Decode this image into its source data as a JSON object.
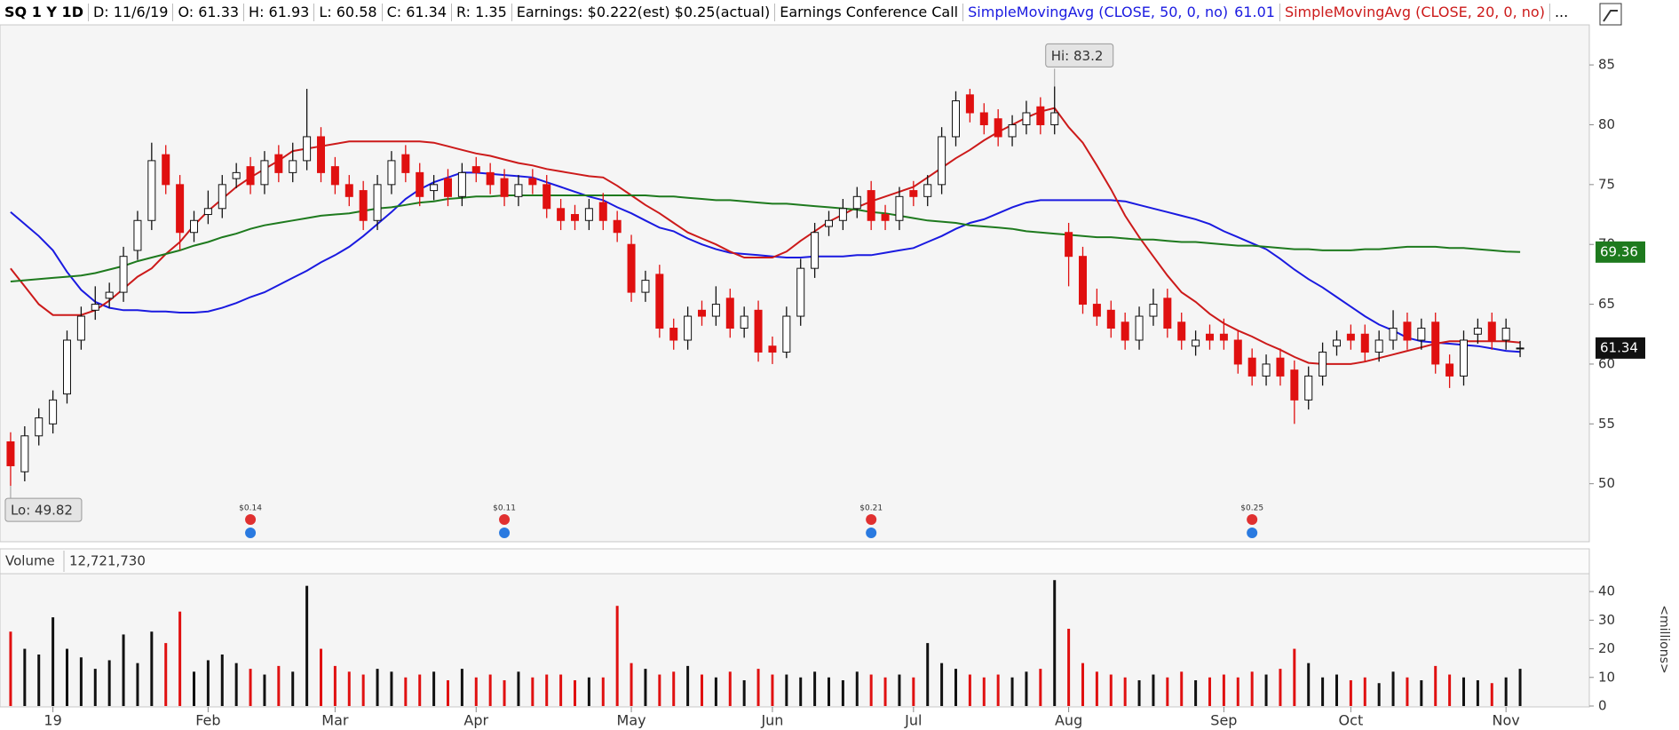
{
  "header": {
    "symbol": "SQ 1 Y 1D",
    "date": "D: 11/6/19",
    "open": "O: 61.33",
    "high": "H: 61.93",
    "low": "L: 60.58",
    "close": "C: 61.34",
    "range": "R: 1.35",
    "earnings": "Earnings: $0.222(est) $0.25(actual)",
    "call": "Earnings Conference Call",
    "more": "..."
  },
  "chart_data": [
    {
      "type": "candlestick",
      "categories": [
        null,
        null,
        null,
        "19",
        null,
        null,
        null,
        null,
        null,
        null,
        null,
        null,
        null,
        null,
        "Feb",
        null,
        null,
        null,
        null,
        null,
        null,
        null,
        null,
        "Mar",
        null,
        null,
        null,
        null,
        null,
        null,
        null,
        null,
        null,
        "Apr",
        null,
        null,
        null,
        null,
        null,
        null,
        null,
        null,
        null,
        null,
        "May",
        null,
        null,
        null,
        null,
        null,
        null,
        null,
        null,
        null,
        "Jun",
        null,
        null,
        null,
        null,
        null,
        null,
        null,
        null,
        null,
        "Jul",
        null,
        null,
        null,
        null,
        null,
        null,
        null,
        null,
        null,
        null,
        "Aug",
        null,
        null,
        null,
        null,
        null,
        null,
        null,
        null,
        null,
        null,
        "Sep",
        null,
        null,
        null,
        null,
        null,
        null,
        null,
        null,
        "Oct",
        null,
        null,
        null,
        null,
        null,
        null,
        null,
        null,
        null,
        null,
        "Nov",
        null
      ],
      "open": [
        53.5,
        51,
        54,
        55,
        57.5,
        62,
        64.5,
        65.5,
        66,
        69.5,
        72,
        77.5,
        75,
        71,
        72.5,
        73,
        75.5,
        76.5,
        75,
        77.5,
        76,
        77,
        79,
        76.5,
        75,
        74.5,
        72,
        75,
        77.5,
        76,
        74.5,
        75.5,
        74,
        76.5,
        76,
        75.5,
        74,
        75.5,
        75,
        73,
        72.5,
        72,
        73.5,
        72,
        70,
        66,
        67.5,
        63,
        62,
        64.5,
        64,
        65.5,
        63,
        64.5,
        61.5,
        61,
        64,
        68,
        71.5,
        72,
        73,
        74.5,
        72.5,
        72,
        74.5,
        74,
        75,
        79,
        82.5,
        81,
        80.5,
        79,
        80,
        81.5,
        80,
        71,
        69,
        65,
        64.5,
        63.5,
        62,
        64,
        65.5,
        63.5,
        61.5,
        62.5,
        62.5,
        62,
        60.5,
        59,
        60.5,
        59.5,
        57,
        59,
        61.5,
        62.5,
        62.5,
        61,
        62,
        63.5,
        62,
        63.5,
        60,
        59,
        62.5,
        63.5,
        62,
        61.33
      ],
      "high": [
        54.3,
        54.8,
        56.3,
        57.8,
        62.8,
        64.8,
        66.5,
        66.8,
        69.8,
        72.8,
        78.5,
        78.3,
        75.8,
        72.8,
        74.5,
        75.8,
        76.8,
        77.3,
        77.8,
        78.3,
        78.5,
        83,
        79.8,
        77.3,
        75.8,
        75.3,
        75.8,
        77.8,
        78.3,
        76.8,
        75.8,
        76.3,
        76.8,
        77.3,
        76.8,
        76.3,
        75.8,
        76.3,
        75.8,
        73.8,
        73.3,
        73.8,
        74.3,
        72.8,
        70.8,
        67.8,
        68.3,
        63.8,
        64.8,
        65.3,
        66.5,
        66.3,
        64.8,
        65.3,
        62.3,
        64.8,
        68.8,
        71.8,
        72.8,
        73.8,
        74.8,
        75.3,
        73.3,
        74.8,
        75.3,
        75.8,
        79.8,
        82.8,
        83,
        81.8,
        81.3,
        80.8,
        82,
        82.3,
        83.2,
        71.8,
        69.8,
        66.3,
        65.3,
        64.3,
        64.8,
        66.3,
        66.3,
        64.3,
        62.8,
        63.3,
        63.8,
        62.8,
        61.3,
        60.8,
        61.3,
        60.3,
        59.8,
        61.8,
        62.8,
        63.3,
        63.3,
        62.8,
        64.5,
        64.3,
        63.8,
        64.3,
        60.8,
        62.8,
        63.8,
        64.3,
        63.8,
        61.93
      ],
      "low": [
        49.82,
        50.2,
        53.2,
        54.2,
        56.7,
        61.2,
        63.7,
        64.7,
        65.2,
        68.7,
        71.2,
        74.2,
        69.5,
        70.2,
        71.7,
        72.2,
        74.7,
        74.2,
        74.2,
        75.2,
        75.2,
        76.2,
        75.2,
        74.2,
        73.2,
        71.2,
        71.2,
        74.2,
        75.2,
        73.2,
        73.7,
        73.2,
        73.2,
        75.2,
        74.2,
        73.2,
        73.2,
        74.2,
        72.2,
        71.2,
        71.2,
        71.2,
        71.2,
        70.2,
        65.2,
        65.2,
        62.2,
        61.2,
        61.2,
        63.2,
        63.2,
        62.2,
        62.2,
        60.2,
        60,
        60.5,
        63.2,
        67.2,
        70.7,
        71.2,
        72.2,
        71.2,
        71.2,
        71.2,
        73.2,
        73.2,
        74.2,
        78.2,
        80.2,
        79.2,
        78.2,
        78.2,
        79.2,
        79.2,
        79.2,
        66.5,
        64.2,
        63.2,
        62.2,
        61.2,
        61.2,
        63.2,
        62.2,
        61.2,
        60.7,
        61.2,
        61.2,
        59.2,
        58.2,
        58.2,
        58.2,
        55,
        56.2,
        58.2,
        60.7,
        61.2,
        60.2,
        60.2,
        61.2,
        61.2,
        61.2,
        59.2,
        58,
        58.2,
        61.7,
        61.2,
        61.2,
        60.58
      ],
      "close": [
        51.5,
        54,
        55.5,
        57,
        62,
        64,
        65,
        66,
        69,
        72,
        77,
        75,
        71,
        72,
        73,
        75,
        76,
        75,
        77,
        76,
        77,
        79,
        76,
        75,
        74,
        72,
        75,
        77,
        76,
        74,
        75,
        74,
        76,
        76,
        75,
        74,
        75,
        75,
        73,
        72,
        72,
        73,
        72,
        71,
        66,
        67,
        63,
        62,
        64,
        64,
        65,
        63,
        64,
        61,
        61,
        64,
        68,
        71,
        72,
        73,
        74,
        72,
        72,
        74,
        74,
        75,
        79,
        82,
        81,
        80,
        79,
        80,
        81,
        80,
        81,
        69,
        65,
        64,
        63,
        62,
        64,
        65,
        63,
        62,
        62,
        62,
        62,
        60,
        59,
        60,
        59,
        57,
        59,
        61,
        62,
        62,
        61,
        62,
        63,
        62,
        63,
        60,
        59,
        62,
        63,
        62,
        63,
        61.34
      ],
      "up_color": "#111111",
      "down_color": "#e01010",
      "series": [
        {
          "name": "SimpleMovingAvg (CLOSE, 50, 0, no)",
          "color": "#1a1ae0",
          "values": [
            72.7,
            71.7,
            70.7,
            69.5,
            67.7,
            66.2,
            65.2,
            64.7,
            64.5,
            64.5,
            64.4,
            64.4,
            64.3,
            64.3,
            64.4,
            64.7,
            65.1,
            65.6,
            66,
            66.6,
            67.2,
            67.8,
            68.5,
            69.1,
            69.8,
            70.7,
            71.7,
            72.7,
            73.8,
            74.6,
            75.2,
            75.6,
            76,
            76,
            75.9,
            75.8,
            75.7,
            75.6,
            75.2,
            74.8,
            74.4,
            74,
            73.7,
            73.1,
            72.6,
            72,
            71.4,
            71.1,
            70.5,
            70,
            69.6,
            69.3,
            69.2,
            69.1,
            69,
            68.9,
            68.9,
            69,
            69,
            69,
            69.1,
            69.1,
            69.3,
            69.5,
            69.7,
            70.2,
            70.7,
            71.3,
            71.8,
            72.1,
            72.6,
            73.1,
            73.5,
            73.7,
            73.7,
            73.7,
            73.7,
            73.7,
            73.7,
            73.6,
            73.3,
            73,
            72.7,
            72.4,
            72.1,
            71.7,
            71.1,
            70.6,
            70.1,
            69.6,
            68.8,
            67.9,
            67.1,
            66.4,
            65.6,
            64.8,
            64,
            63.3,
            62.8,
            62.2,
            61.9,
            61.8,
            61.7,
            61.6,
            61.5,
            61.3,
            61.1,
            61.01
          ]
        },
        {
          "name": "SimpleMovingAvg (CLOSE, 20, 0, no)",
          "color": "#cc1a1a",
          "values": [
            68,
            66.5,
            65,
            64.1,
            64.1,
            64.1,
            64.5,
            65.3,
            66.3,
            67.3,
            68,
            69.2,
            70.2,
            71.6,
            72.8,
            73.8,
            74.8,
            75.6,
            76.3,
            77,
            77.8,
            78,
            78.2,
            78.4,
            78.6,
            78.6,
            78.6,
            78.6,
            78.6,
            78.6,
            78.5,
            78.2,
            77.9,
            77.6,
            77.4,
            77.1,
            76.8,
            76.6,
            76.3,
            76.1,
            75.9,
            75.7,
            75.6,
            74.9,
            74.1,
            73.3,
            72.6,
            71.8,
            71,
            70.5,
            70,
            69.4,
            68.9,
            68.9,
            68.9,
            69.4,
            70.3,
            71.1,
            71.9,
            72.5,
            73.1,
            73.6,
            74,
            74.4,
            74.8,
            75.6,
            76.4,
            77.2,
            77.9,
            78.7,
            79.4,
            80,
            80.6,
            81.1,
            81.4,
            79.8,
            78.5,
            76.6,
            74.6,
            72.4,
            70.6,
            69,
            67.4,
            66,
            65.2,
            64.2,
            63.4,
            62.8,
            62.3,
            61.7,
            61.2,
            60.6,
            60.1,
            60,
            60,
            60,
            60.2,
            60.5,
            60.8,
            61.1,
            61.4,
            61.7,
            61.9,
            61.9,
            61.9,
            61.9,
            61.9,
            61.8
          ]
        },
        {
          "color": "#1e7a1e",
          "values": [
            66.9,
            67,
            67.1,
            67.2,
            67.3,
            67.4,
            67.6,
            67.9,
            68.2,
            68.6,
            68.9,
            69.2,
            69.5,
            69.9,
            70.2,
            70.6,
            70.9,
            71.3,
            71.6,
            71.8,
            72,
            72.2,
            72.4,
            72.5,
            72.6,
            72.8,
            73,
            73.1,
            73.3,
            73.5,
            73.6,
            73.8,
            73.9,
            74,
            74,
            74.1,
            74.1,
            74.1,
            74.1,
            74.1,
            74.1,
            74.1,
            74.1,
            74.1,
            74.1,
            74.1,
            74,
            74,
            73.9,
            73.8,
            73.7,
            73.7,
            73.6,
            73.5,
            73.4,
            73.4,
            73.3,
            73.2,
            73.1,
            73,
            72.9,
            72.7,
            72.6,
            72.4,
            72.2,
            72,
            71.9,
            71.8,
            71.6,
            71.5,
            71.4,
            71.3,
            71.1,
            71,
            70.9,
            70.8,
            70.7,
            70.6,
            70.6,
            70.5,
            70.4,
            70.4,
            70.3,
            70.2,
            70.2,
            70.1,
            70,
            69.9,
            69.9,
            69.8,
            69.7,
            69.6,
            69.6,
            69.5,
            69.5,
            69.5,
            69.6,
            69.6,
            69.7,
            69.8,
            69.8,
            69.8,
            69.7,
            69.7,
            69.6,
            69.5,
            69.4,
            69.36
          ]
        }
      ],
      "ylim": [
        45.3,
        88.2
      ],
      "yticks": [
        50,
        55,
        60,
        65,
        70,
        75,
        80,
        85
      ],
      "annotations": [
        {
          "text": "Hi: 83.2",
          "index": 74
        },
        {
          "text": "Lo: 49.82",
          "index": 0
        }
      ],
      "events": [
        {
          "index": 17,
          "text": "$0.14"
        },
        {
          "index": 35,
          "text": "$0.11"
        },
        {
          "index": 61,
          "text": "$0.21"
        },
        {
          "index": 88,
          "text": "$0.25"
        }
      ]
    },
    {
      "type": "bar",
      "title": "Volume",
      "value_label": "12,721,730",
      "y_label": "<millions>",
      "values": [
        26,
        20,
        18,
        31,
        20,
        17,
        13,
        16,
        25,
        15,
        26,
        22,
        33,
        12,
        16,
        18,
        15,
        13,
        11,
        14,
        12,
        42,
        20,
        14,
        12,
        11,
        13,
        12,
        10,
        11,
        12,
        9,
        13,
        10,
        11,
        9,
        12,
        10,
        11,
        11,
        9,
        10,
        10,
        35,
        15,
        13,
        11,
        12,
        14,
        11,
        10,
        12,
        9,
        13,
        11,
        11,
        10,
        12,
        10,
        9,
        12,
        11,
        10,
        11,
        10,
        22,
        15,
        13,
        11,
        10,
        11,
        10,
        12,
        13,
        44,
        27,
        15,
        12,
        11,
        10,
        9,
        11,
        10,
        12,
        9,
        10,
        11,
        10,
        12,
        11,
        13,
        20,
        15,
        10,
        11,
        9,
        10,
        8,
        12,
        10,
        9,
        14,
        11,
        10,
        9,
        8,
        10,
        13
      ],
      "ylim": [
        0,
        45
      ],
      "yticks": [
        0,
        10,
        20,
        30,
        40
      ]
    }
  ]
}
